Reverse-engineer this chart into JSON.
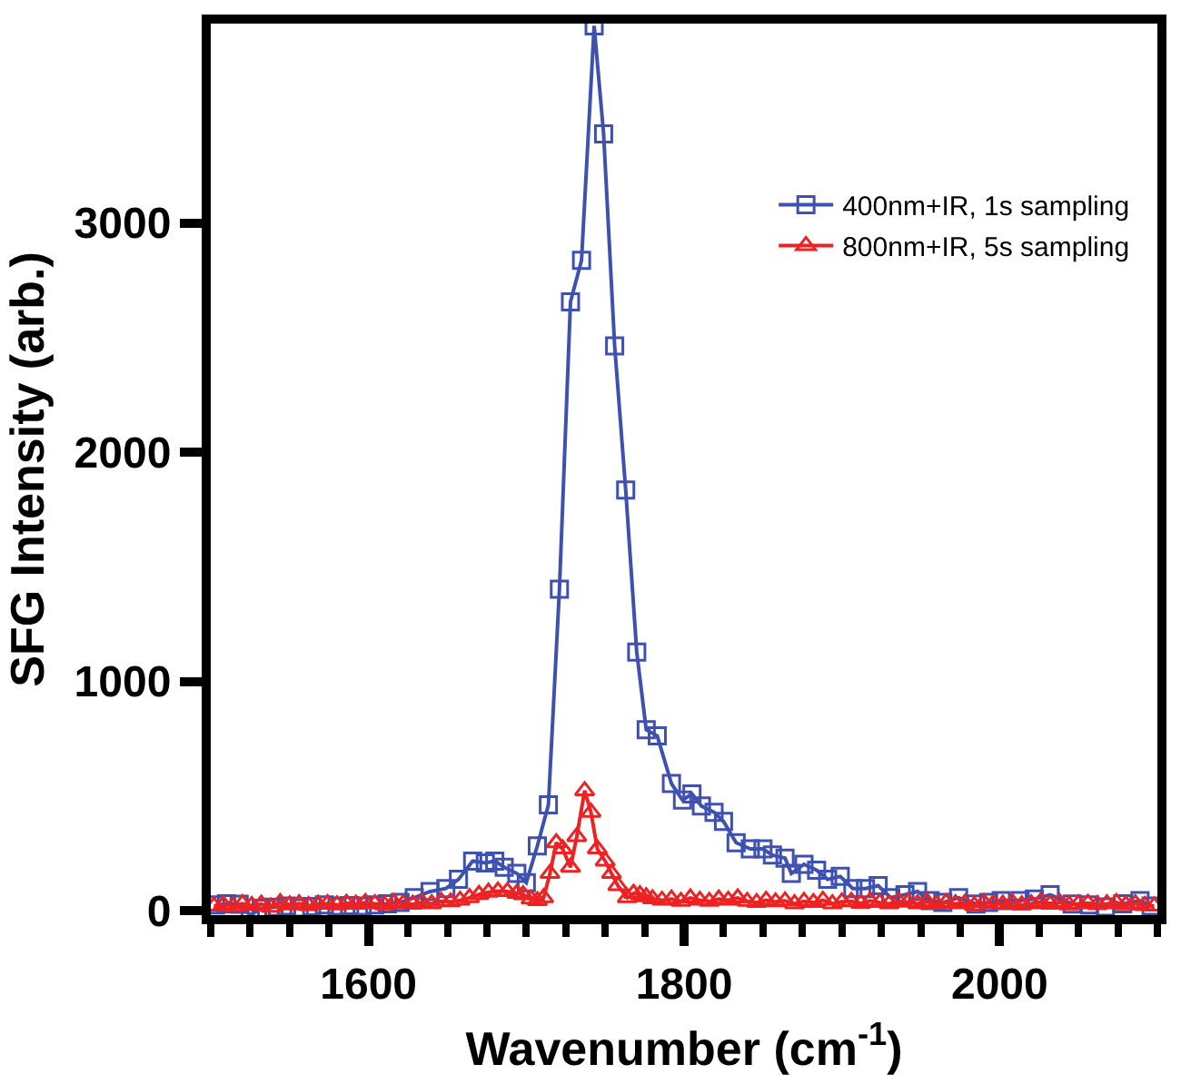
{
  "chart_data": {
    "type": "line",
    "xlabel": "Wavenumber (cm$^{-1}$)",
    "ylabel": "SFG Intensity (arb.)",
    "xlim": [
      1500,
      2100
    ],
    "ylim": [
      -20,
      3870
    ],
    "xticks": [
      {
        "value": 1500,
        "label": null
      },
      {
        "value": 1525,
        "label": null
      },
      {
        "value": 1550,
        "label": null
      },
      {
        "value": 1575,
        "label": null
      },
      1600,
      {
        "value": 1625,
        "label": null
      },
      {
        "value": 1650,
        "label": null
      },
      {
        "value": 1675,
        "label": null
      },
      {
        "value": 1700,
        "label": null
      },
      {
        "value": 1725,
        "label": null
      },
      {
        "value": 1750,
        "label": null
      },
      {
        "value": 1775,
        "label": null
      },
      1800,
      {
        "value": 1825,
        "label": null
      },
      {
        "value": 1850,
        "label": null
      },
      {
        "value": 1875,
        "label": null
      },
      {
        "value": 1900,
        "label": null
      },
      {
        "value": 1925,
        "label": null
      },
      {
        "value": 1950,
        "label": null
      },
      {
        "value": 1975,
        "label": null
      },
      2000,
      {
        "value": 2025,
        "label": null
      },
      {
        "value": 2050,
        "label": null
      },
      {
        "value": 2075,
        "label": null
      },
      {
        "value": 2100,
        "label": null
      }
    ],
    "yticks": [
      0,
      1000,
      2000,
      3000
    ],
    "legend": "top right",
    "line_style": "solid",
    "series": [
      {
        "name": "400nm+IR, 1s sampling",
        "color": "#3f51b0",
        "marker": "square",
        "x": [
          1503,
          1510,
          1518,
          1525,
          1532,
          1540,
          1548,
          1556,
          1564,
          1572,
          1580,
          1588,
          1596,
          1604,
          1612,
          1620,
          1629,
          1639,
          1649,
          1657,
          1666,
          1674,
          1680,
          1686,
          1694,
          1700,
          1707,
          1714,
          1721,
          1728,
          1735,
          1743,
          1749,
          1756,
          1763,
          1770,
          1776,
          1783,
          1792,
          1799,
          1805,
          1811,
          1819,
          1825,
          1833,
          1842,
          1850,
          1856,
          1864,
          1868,
          1876,
          1884,
          1891,
          1899,
          1907,
          1915,
          1923,
          1931,
          1940,
          1948,
          1956,
          1964,
          1974,
          1985,
          1993,
          2001,
          2013,
          2022,
          2032,
          2046,
          2057,
          2067,
          2078,
          2089,
          2096
        ],
        "values": [
          25,
          30,
          28,
          -20,
          10,
          15,
          20,
          12,
          18,
          25,
          20,
          22,
          20,
          25,
          30,
          35,
          56,
          83,
          96,
          136,
          216,
          208,
          216,
          189,
          162,
          122,
          282,
          461,
          1402,
          2656,
          2837,
          3860,
          3389,
          2464,
          1835,
          1128,
          789,
          762,
          554,
          482,
          509,
          456,
          429,
          389,
          296,
          269,
          269,
          242,
          229,
          162,
          202,
          176,
          136,
          149,
          96,
          96,
          109,
          56,
          69,
          83,
          43,
          35,
          56,
          29,
          35,
          43,
          43,
          50,
          69,
          29,
          25,
          16,
          30,
          43,
          20
        ]
      },
      {
        "name": "800nm+IR, 5s sampling",
        "color": "#ee2222",
        "marker": "triangle",
        "x": [
          1502,
          1508,
          1514,
          1520,
          1526,
          1532,
          1538,
          1544,
          1550,
          1556,
          1562,
          1568,
          1574,
          1580,
          1586,
          1592,
          1598,
          1604,
          1610,
          1616,
          1622,
          1628,
          1634,
          1640,
          1646,
          1652,
          1658,
          1664,
          1670,
          1676,
          1682,
          1688,
          1694,
          1698,
          1703,
          1707,
          1711,
          1715,
          1719,
          1723,
          1728,
          1732,
          1737,
          1741,
          1745,
          1750,
          1754,
          1758,
          1764,
          1768,
          1772,
          1776,
          1780,
          1786,
          1792,
          1798,
          1804,
          1810,
          1816,
          1822,
          1828,
          1834,
          1840,
          1846,
          1852,
          1858,
          1864,
          1870,
          1876,
          1882,
          1888,
          1894,
          1900,
          1906,
          1912,
          1918,
          1924,
          1930,
          1936,
          1942,
          1948,
          1954,
          1960,
          1966,
          1972,
          1978,
          1984,
          1990,
          1996,
          2002,
          2008,
          2014,
          2020,
          2026,
          2032,
          2038,
          2044,
          2050,
          2056,
          2062,
          2068,
          2074,
          2080,
          2086,
          2092,
          2098
        ],
        "values": [
          20,
          25,
          18,
          30,
          22,
          28,
          15,
          35,
          25,
          30,
          22,
          28,
          30,
          25,
          32,
          28,
          35,
          30,
          25,
          35,
          30,
          28,
          35,
          30,
          40,
          38,
          45,
          56,
          70,
          80,
          85,
          83,
          75,
          69,
          50,
          43,
          56,
          162,
          296,
          269,
          189,
          323,
          523,
          429,
          269,
          216,
          162,
          109,
          56,
          75,
          69,
          60,
          51,
          45,
          50,
          40,
          55,
          45,
          40,
          50,
          45,
          55,
          40,
          35,
          45,
          38,
          42,
          30,
          40,
          35,
          45,
          30,
          38,
          40,
          32,
          42,
          35,
          30,
          40,
          36,
          30,
          38,
          28,
          35,
          30,
          32,
          22,
          35,
          30,
          28,
          35,
          25,
          30,
          38,
          28,
          35,
          25,
          30,
          32,
          26,
          30,
          35,
          25,
          30,
          22,
          20
        ]
      }
    ]
  }
}
